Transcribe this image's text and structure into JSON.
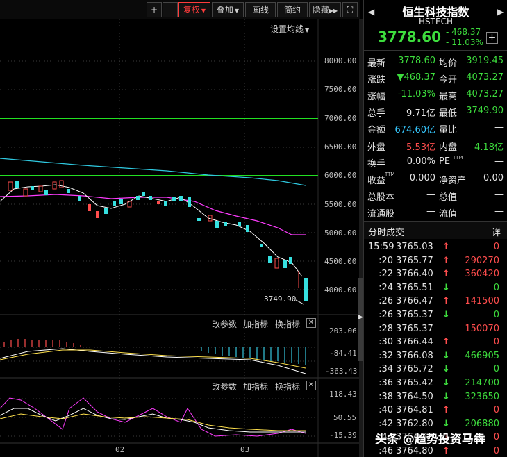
{
  "toolbar": {
    "plus": "+",
    "minus": "—",
    "fuquan": "复权",
    "diejia": "叠加",
    "huaxian": "画线",
    "jianyue": "简约",
    "yincang": "隐藏",
    "yincang_arrow": "▶▶",
    "fullscreen": "⛶"
  },
  "main_chart": {
    "settings_label": "设置均线",
    "y_ticks": [
      "8000.00",
      "7500.00",
      "7000.00",
      "6500.00",
      "6000.00",
      "5500.00",
      "5000.00",
      "4500.00",
      "4000.00"
    ],
    "low_annotation": "3749.90"
  },
  "macd_panel": {
    "btn_params": "改参数",
    "btn_add": "加指标",
    "btn_switch": "换指标",
    "close": "✕",
    "y_ticks": [
      "203.06",
      "-84.41",
      "-363.43"
    ]
  },
  "kdj_panel": {
    "btn_params": "改参数",
    "btn_add": "加指标",
    "btn_switch": "换指标",
    "close": "✕",
    "y_ticks": [
      "118.43",
      "50.55",
      "-15.39"
    ]
  },
  "x_axis": {
    "ticks": [
      "02",
      "03"
    ]
  },
  "quote": {
    "name": "恒生科技指数",
    "code": "HSTECH",
    "price": "3778.60",
    "change": "- 468.37",
    "change_pct": "- 11.03%",
    "add_btn": "+",
    "prev_arrow": "◀",
    "next_arrow": "▶"
  },
  "stats": [
    {
      "l1": "最新",
      "v1": "3778.60",
      "c1": "green",
      "l2": "均价",
      "v2": "3919.45",
      "c2": "green"
    },
    {
      "l1": "涨跌",
      "v1": "▼468.37",
      "c1": "green",
      "l2": "今开",
      "v2": "4073.27",
      "c2": "green"
    },
    {
      "l1": "涨幅",
      "v1": "-11.03%",
      "c1": "green",
      "l2": "最高",
      "v2": "4073.27",
      "c2": "green"
    },
    {
      "l1": "总手",
      "v1": "9.71亿",
      "c1": "white",
      "l2": "最低",
      "v2": "3749.90",
      "c2": "green"
    },
    {
      "l1": "金额",
      "v1": "674.60亿",
      "c1": "cyan",
      "l2": "量比",
      "v2": "—",
      "c2": "white"
    },
    {
      "l1": "外盘",
      "v1": "5.53亿",
      "c1": "red",
      "l2": "内盘",
      "v2": "4.18亿",
      "c2": "green"
    },
    {
      "l1": "换手",
      "v1": "0.00%",
      "c1": "white",
      "l2": "PE",
      "v2": "—",
      "c2": "white"
    },
    {
      "l1": "收益",
      "v1": "0.000",
      "c1": "white",
      "l2": "净资产",
      "v2": "0.00",
      "c2": "white"
    },
    {
      "l1": "总股本",
      "v1": "—",
      "c1": "white",
      "l2": "总值",
      "v2": "—",
      "c2": "white"
    },
    {
      "l1": "流通股",
      "v1": "—",
      "c1": "white",
      "l2": "流值",
      "v2": "—",
      "c2": "white"
    }
  ],
  "pe_sup": "TTM",
  "eps_sup": "TTM",
  "ticks_header": {
    "title": "分时成交",
    "detail": "详"
  },
  "ticks": [
    {
      "time": "15:59",
      "price": "3765.03",
      "dir": "up",
      "vol": "0"
    },
    {
      "time": ":20",
      "price": "3765.77",
      "dir": "up",
      "vol": "290270"
    },
    {
      "time": ":22",
      "price": "3766.40",
      "dir": "up",
      "vol": "360420"
    },
    {
      "time": ":24",
      "price": "3765.51",
      "dir": "down",
      "vol": "0"
    },
    {
      "time": ":26",
      "price": "3766.47",
      "dir": "up",
      "vol": "141500"
    },
    {
      "time": ":26",
      "price": "3765.37",
      "dir": "down",
      "vol": "0"
    },
    {
      "time": ":28",
      "price": "3765.37",
      "dir": "none",
      "vol": "150070"
    },
    {
      "time": ":30",
      "price": "3766.44",
      "dir": "up",
      "vol": "0"
    },
    {
      "time": ":32",
      "price": "3766.08",
      "dir": "down",
      "vol": "466905"
    },
    {
      "time": ":34",
      "price": "3765.72",
      "dir": "down",
      "vol": "0"
    },
    {
      "time": ":36",
      "price": "3765.42",
      "dir": "down",
      "vol": "214700"
    },
    {
      "time": ":38",
      "price": "3764.50",
      "dir": "down",
      "vol": "323650"
    },
    {
      "time": ":40",
      "price": "3764.81",
      "dir": "up",
      "vol": "0"
    },
    {
      "time": ":42",
      "price": "3762.80",
      "dir": "down",
      "vol": "206880"
    },
    {
      "time": ":44",
      "price": "3764.3",
      "dir": "up",
      "vol": "0"
    },
    {
      "time": ":46",
      "price": "3764.80",
      "dir": "up",
      "vol": "0"
    }
  ],
  "watermark": "头条 @趋势投资马犇",
  "colors": {
    "up": "#ff4d4d",
    "down": "#3ddc3d",
    "ma5": "#ffffff",
    "ma10": "#ff3cff",
    "ma20": "#2fc9e0",
    "hline": "#22e022"
  }
}
